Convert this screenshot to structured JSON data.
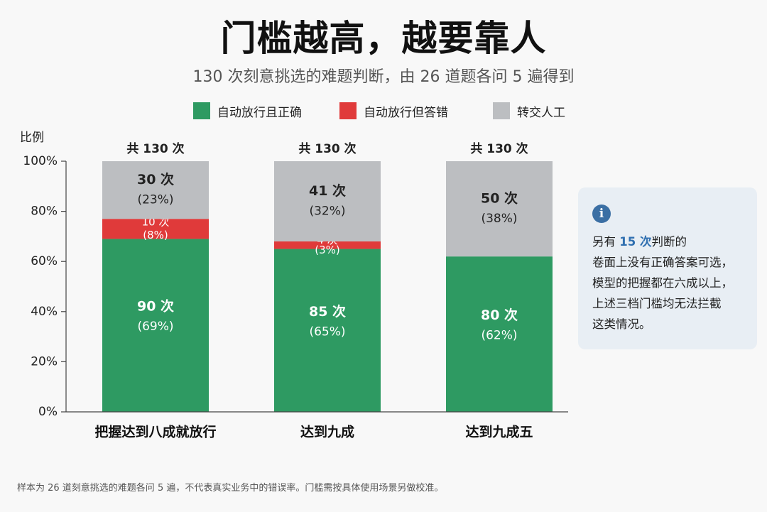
{
  "chart_data": {
    "type": "bar",
    "stacked": true,
    "title": "门槛越高，越要靠人",
    "subtitle": "130 次刻意挑选的难题判断，由 26 道题各问 5 遍得到",
    "ylabel": "比例",
    "ylim": [
      0,
      100
    ],
    "yticks": [
      "0%",
      "20%",
      "40%",
      "60%",
      "80%",
      "100%"
    ],
    "categories": [
      "把握达到八成就放行",
      "达到九成",
      "达到九成五"
    ],
    "totals": [
      "共 130 次",
      "共 130 次",
      "共 130 次"
    ],
    "series": [
      {
        "name": "自动放行且正确",
        "color": "#2e9a62",
        "counts": [
          90,
          85,
          80
        ],
        "values": [
          69,
          65,
          62
        ],
        "labels": [
          "90 次",
          "85 次",
          "80 次"
        ],
        "pct_labels": [
          "(69%)",
          "(65%)",
          "(62%)"
        ]
      },
      {
        "name": "自动放行但答错",
        "color": "#e03a3a",
        "counts": [
          10,
          4,
          0
        ],
        "values": [
          8,
          3,
          0
        ],
        "labels": [
          "10 次",
          "4 次",
          ""
        ],
        "pct_labels": [
          "(8%)",
          "(3%)",
          ""
        ]
      },
      {
        "name": "转交人工",
        "color": "#bcbec1",
        "counts": [
          30,
          41,
          50
        ],
        "values": [
          23,
          32,
          38
        ],
        "labels": [
          "30 次",
          "41 次",
          "50 次"
        ],
        "pct_labels": [
          "(23%)",
          "(32%)",
          "(38%)"
        ]
      }
    ],
    "legend_position": "top",
    "grid": false
  },
  "note": {
    "icon": "info-icon",
    "icon_glyph": "i",
    "line1_pre": "另有 ",
    "line1_highlight": "15 次",
    "line1_post": "判断的",
    "line2": "卷面上没有正确答案可选，",
    "line3": "模型的把握都在六成以上，",
    "line4": "上述三档门槛均无法拦截",
    "line5": "这类情况。"
  },
  "footnote": "样本为 26 道刻意挑选的难题各问 5 遍，不代表真实业务中的错误率。门槛需按具体使用场景另做校准。"
}
